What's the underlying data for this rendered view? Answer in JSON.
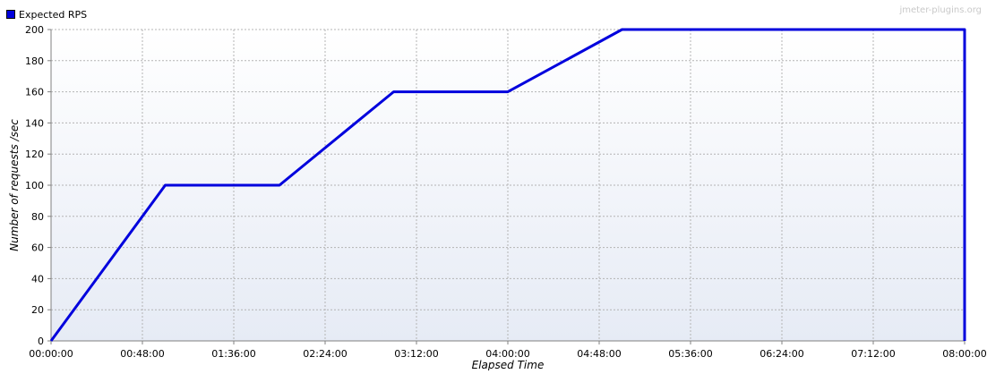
{
  "watermark": "jmeter-plugins.org",
  "legend": {
    "label": "Expected RPS",
    "color": "#0000dd"
  },
  "colors": {
    "background_top": "#ffffff",
    "background_bottom": "#e6ebf5",
    "grid": "#b4b4b4",
    "line": "#0000dd"
  },
  "chart_data": {
    "type": "line",
    "xlabel": "Elapsed Time",
    "ylabel": "Number of requests /sec",
    "xlim_seconds": [
      0,
      28800
    ],
    "ylim": [
      0,
      200
    ],
    "grid": true,
    "legend_position": "top-left",
    "x_ticks": [
      "00:00:00",
      "00:48:00",
      "01:36:00",
      "02:24:00",
      "03:12:00",
      "04:00:00",
      "04:48:00",
      "05:36:00",
      "06:24:00",
      "07:12:00",
      "08:00:00"
    ],
    "y_ticks": [
      0,
      20,
      40,
      60,
      80,
      100,
      120,
      140,
      160,
      180,
      200
    ],
    "series": [
      {
        "name": "Expected RPS",
        "x": [
          "00:00:00",
          "01:00:00",
          "02:00:00",
          "03:00:00",
          "04:00:00",
          "05:00:00",
          "08:00:00",
          "08:00:00"
        ],
        "y": [
          0,
          100,
          100,
          160,
          160,
          200,
          200,
          0
        ]
      }
    ]
  }
}
